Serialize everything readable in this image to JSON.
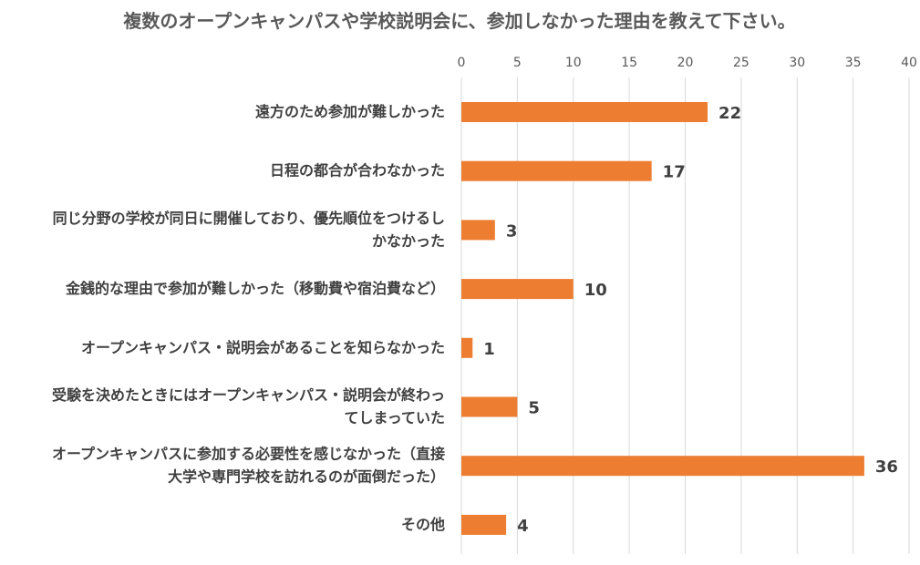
{
  "chart_data": {
    "type": "bar",
    "orientation": "horizontal",
    "title": "複数のオープンキャンパスや学校説明会に、参加しなかった理由を教えて下さい。",
    "categories": [
      [
        "遠方のため参加が難しかった"
      ],
      [
        "日程の都合が合わなかった"
      ],
      [
        "同じ分野の学校が同日に開催しており、優先順位をつけるし",
        "かなかった"
      ],
      [
        "金銭的な理由で参加が難しかった（移動費や宿泊費など）"
      ],
      [
        "オープンキャンパス・説明会があることを知らなかった"
      ],
      [
        "受験を決めたときにはオープンキャンパス・説明会が終わっ",
        "てしまっていた"
      ],
      [
        "オープンキャンパスに参加する必要性を感じなかった（直接",
        "大学や専門学校を訪れるのが面倒だった）"
      ],
      [
        "その他"
      ]
    ],
    "values": [
      22,
      17,
      3,
      10,
      1,
      5,
      36,
      4
    ],
    "xlim": [
      0,
      40
    ],
    "xticks": [
      0,
      5,
      10,
      15,
      20,
      25,
      30,
      35,
      40
    ],
    "x_axis_position": "top",
    "grid": true,
    "data_labels": true,
    "bar_color": "#ED7D31"
  }
}
